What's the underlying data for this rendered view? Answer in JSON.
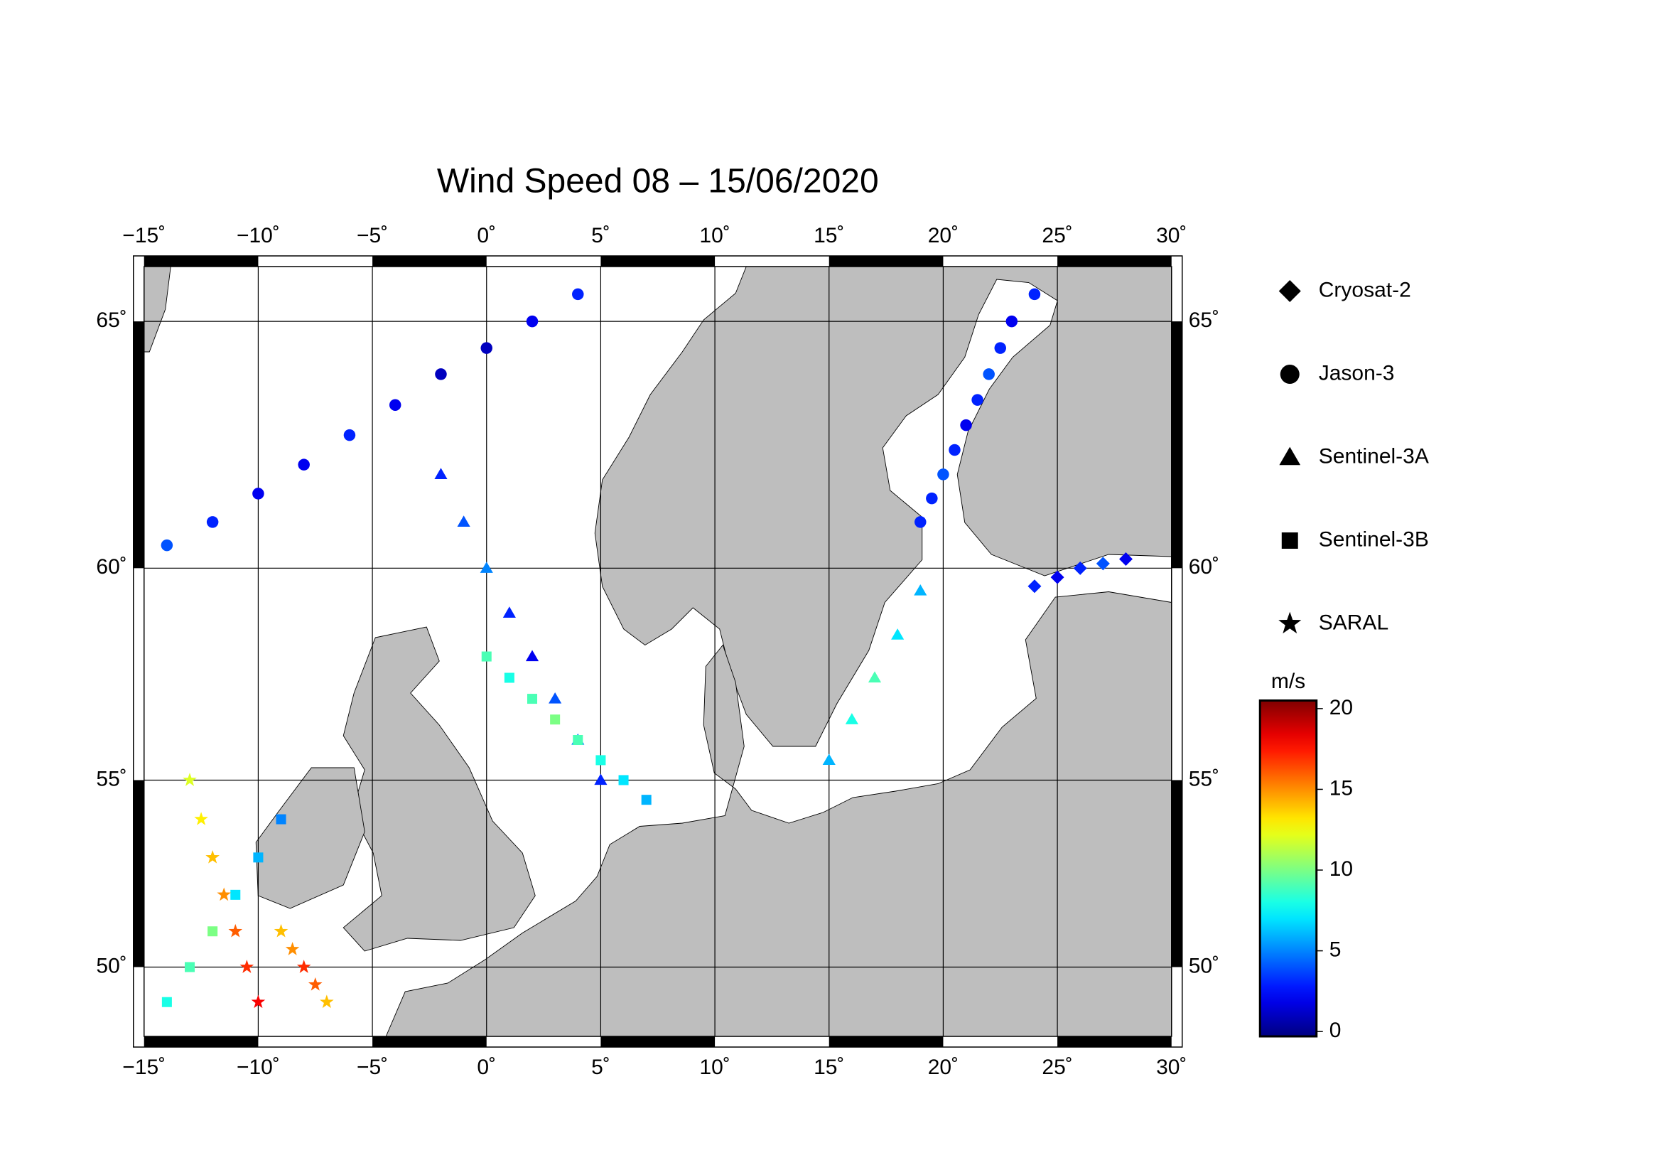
{
  "chart_data": {
    "type": "map",
    "title": "Wind Speed 08 – 15/06/2020",
    "xlim": [
      -15,
      30
    ],
    "ylim": [
      48,
      66
    ],
    "xticks": [
      {
        "value": -15,
        "label": "−15˚"
      },
      {
        "value": -10,
        "label": "−10˚"
      },
      {
        "value": -5,
        "label": "−5˚"
      },
      {
        "value": 0,
        "label": "0˚"
      },
      {
        "value": 5,
        "label": "5˚"
      },
      {
        "value": 10,
        "label": "10˚"
      },
      {
        "value": 15,
        "label": "15˚"
      },
      {
        "value": 20,
        "label": "20˚"
      },
      {
        "value": 25,
        "label": "25˚"
      },
      {
        "value": 30,
        "label": "30˚"
      }
    ],
    "yticks": [
      {
        "value": 50,
        "label": "50˚"
      },
      {
        "value": 55,
        "label": "55˚"
      },
      {
        "value": 60,
        "label": "60˚"
      },
      {
        "value": 65,
        "label": "65˚"
      }
    ],
    "grid": true,
    "colormap": "jet",
    "colorbar": {
      "label": "m/s",
      "lim": [
        -0.3,
        20.5
      ],
      "ticks": [
        0,
        5,
        10,
        15,
        20
      ]
    },
    "series": [
      {
        "name": "Cryosat-2",
        "marker": "diamond",
        "x": [
          24,
          25,
          26,
          27,
          28
        ],
        "y": [
          59.6,
          59.8,
          60,
          60.1,
          60.2
        ],
        "values": [
          3,
          2,
          3,
          4,
          2
        ]
      },
      {
        "name": "Jason-3",
        "marker": "circle",
        "x": [
          -14,
          -12,
          -10,
          -8,
          -6,
          -4,
          -2,
          0,
          2,
          4,
          19,
          19.5,
          20,
          20.5,
          21,
          21.5,
          22,
          22.5,
          23,
          24
        ],
        "y": [
          60.5,
          61,
          61.6,
          62.2,
          62.8,
          63.4,
          64,
          64.5,
          65,
          65.5,
          61,
          61.5,
          62,
          62.5,
          63,
          63.5,
          64,
          64.5,
          65,
          65.5
        ],
        "values": [
          4,
          3,
          2,
          2,
          3,
          2,
          1,
          1,
          2,
          3,
          3,
          3,
          4,
          3,
          2,
          3,
          4,
          3,
          2,
          3
        ]
      },
      {
        "name": "Sentinel-3A",
        "marker": "triangle",
        "x": [
          -2,
          -1,
          0,
          1,
          2,
          3,
          4,
          5,
          15,
          16,
          17,
          18,
          19
        ],
        "y": [
          62,
          61,
          60,
          59,
          58,
          57,
          56,
          55,
          55.5,
          56.5,
          57.5,
          58.5,
          59.5
        ],
        "values": [
          3,
          4,
          5,
          3,
          2,
          4,
          5,
          3,
          6,
          8,
          9,
          7,
          6
        ]
      },
      {
        "name": "Sentinel-3B",
        "marker": "square",
        "x": [
          -14,
          -13,
          -12,
          -11,
          -10,
          -9,
          0,
          1,
          2,
          3,
          4,
          5,
          6,
          7
        ],
        "y": [
          49,
          50,
          51,
          52,
          53,
          54,
          58,
          57.5,
          57,
          56.5,
          56,
          55.5,
          55,
          54.5
        ],
        "values": [
          8,
          9,
          10,
          7,
          6,
          5,
          9,
          8,
          9,
          10,
          9,
          8,
          7,
          6
        ]
      },
      {
        "name": "SARAL",
        "marker": "star",
        "x": [
          -13,
          -12.5,
          -12,
          -11.5,
          -11,
          -10.5,
          -10,
          -9,
          -8.5,
          -8,
          -7.5,
          -7
        ],
        "y": [
          55,
          54,
          53,
          52,
          51,
          50,
          49,
          51,
          50.5,
          50,
          49.5,
          49
        ],
        "values": [
          12,
          13,
          14,
          15,
          16,
          17,
          18,
          14,
          15,
          17,
          16,
          14
        ]
      }
    ]
  }
}
